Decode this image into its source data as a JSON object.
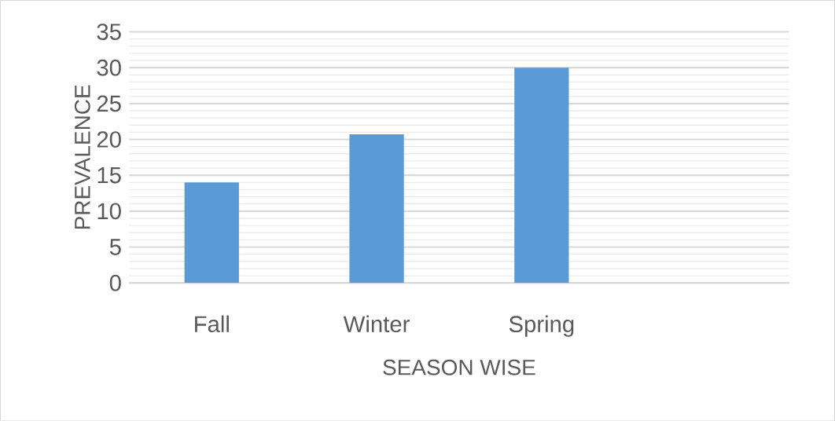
{
  "chart_data": {
    "type": "bar",
    "xlabel": "SEASON WISE",
    "ylabel": "PREVALENCE",
    "categories": [
      "Fall",
      "Winter",
      "Spring",
      null
    ],
    "values": [
      14,
      20.7,
      30,
      null
    ],
    "color": "#5b9bd5",
    "ylim": [
      0,
      35
    ],
    "yticks": [
      0,
      5,
      10,
      15,
      20,
      25,
      30,
      35
    ],
    "grid": "y"
  }
}
